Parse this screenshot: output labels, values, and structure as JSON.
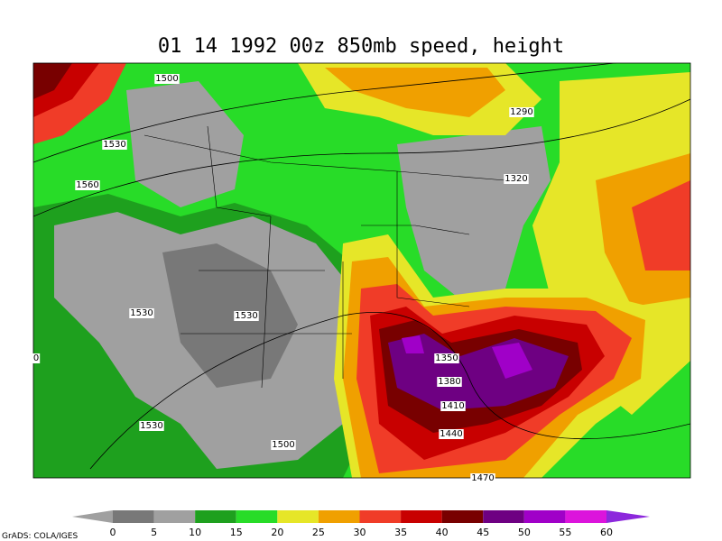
{
  "title": "01 14 1992 00z 850mb speed, height",
  "colorbar": {
    "ticks": [
      0,
      5,
      10,
      15,
      20,
      25,
      30,
      35,
      40,
      45,
      50,
      55,
      60
    ],
    "colors": [
      "#a0a0a0",
      "#787878",
      "#a0a0a0",
      "#1ea01e",
      "#28dc28",
      "#e6e628",
      "#f0a000",
      "#f03c28",
      "#c80000",
      "#780000",
      "#6e0082",
      "#a000c8",
      "#dc14dc",
      "#8c28dc"
    ]
  },
  "contour_labels": [
    1500,
    1530,
    1560,
    1290,
    1320,
    1530,
    1530,
    0,
    1350,
    1380,
    1410,
    1440,
    1530,
    1500,
    1470
  ],
  "credit": "GrADS: COLA/IGES"
}
